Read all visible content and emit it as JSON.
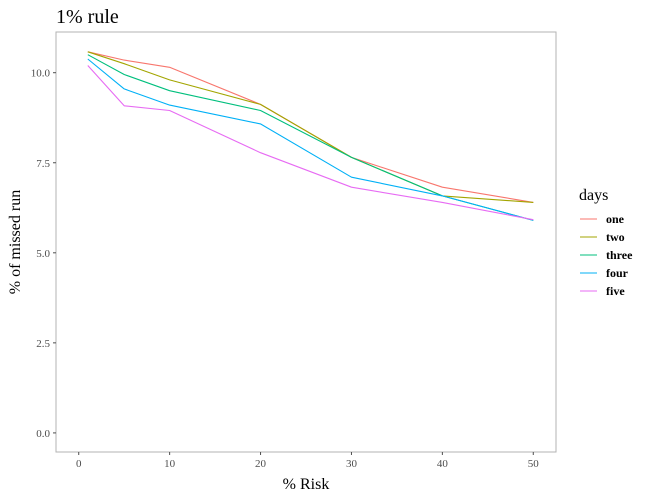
{
  "chart_data": {
    "type": "line",
    "title": "1% rule",
    "xlabel": "% Risk",
    "ylabel": "% of missed run",
    "xlim": [
      -2.5,
      52.5
    ],
    "ylim": [
      -0.53,
      11.13
    ],
    "x_ticks": [
      0,
      10,
      20,
      30,
      40,
      50
    ],
    "x_tick_labels": [
      "0",
      "10",
      "20",
      "30",
      "40",
      "50"
    ],
    "y_ticks": [
      0,
      2.5,
      5,
      7.5,
      10
    ],
    "y_tick_labels": [
      "0.0",
      "2.5",
      "5.0",
      "7.5",
      "10.0"
    ],
    "grid": false,
    "legend_title": "days",
    "legend_position": "right",
    "x": [
      1,
      5,
      10,
      20,
      30,
      40,
      50
    ],
    "series": [
      {
        "name": "one",
        "color": "#F8766D",
        "values": [
          10.58,
          10.35,
          10.15,
          9.12,
          7.65,
          6.82,
          6.4
        ]
      },
      {
        "name": "two",
        "color": "#A3A500",
        "values": [
          10.58,
          10.25,
          9.8,
          9.12,
          7.65,
          6.58,
          6.4
        ]
      },
      {
        "name": "three",
        "color": "#00BF7D",
        "values": [
          10.5,
          9.95,
          9.5,
          8.95,
          7.65,
          6.58,
          5.9
        ]
      },
      {
        "name": "four",
        "color": "#00B0F6",
        "values": [
          10.38,
          9.55,
          9.1,
          8.58,
          7.1,
          6.58,
          5.9
        ]
      },
      {
        "name": "five",
        "color": "#E76BF3",
        "values": [
          10.2,
          9.08,
          8.95,
          7.78,
          6.82,
          6.4,
          5.92
        ]
      }
    ]
  }
}
